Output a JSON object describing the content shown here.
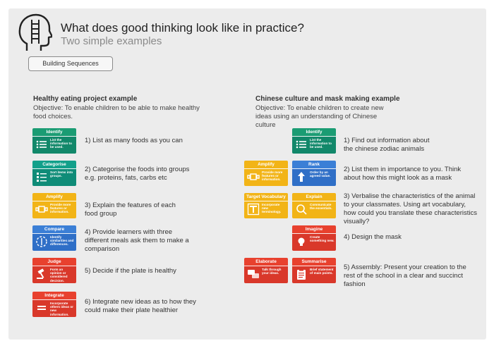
{
  "header": {
    "title": "What does good thinking look like in practice?",
    "subtitle": "Two simple examples",
    "sequence_button": "Building Sequences"
  },
  "left": {
    "title": "Healthy eating project example",
    "objective": "Objective: To enable children to be able to make healthy food choices.",
    "cards": [
      {
        "label": "Identify",
        "desc": "List the information to be used.",
        "color": "green",
        "icon": "list-icon"
      },
      {
        "label": "Categorise",
        "desc": "Sort items into groups.",
        "color": "teal",
        "icon": "sort-list-icon"
      },
      {
        "label": "Amplify",
        "desc": "Provide more features or information.",
        "color": "yellow",
        "icon": "amplify-icon"
      },
      {
        "label": "Compare",
        "desc": "Identify similarities and differences.",
        "color": "blue",
        "icon": "compare-icon"
      },
      {
        "label": "Judge",
        "desc": "Form an opinion or considered decision.",
        "color": "red",
        "icon": "gavel-icon"
      },
      {
        "label": "Integrate",
        "desc": "Incorporate others ideas or new information.",
        "color": "red",
        "icon": "integrate-icon"
      }
    ],
    "steps": [
      "1) List as many foods as you can",
      "2) Categorise the foods into groups e.g. proteins, fats, carbs etc",
      "3) Explain the features of each food group",
      "4) Provide learners with three different meals ask them to make a comparison",
      "5) Decide if the plate is healthy",
      "6) Integrate new ideas as to how they could make their plate healthier"
    ]
  },
  "right": {
    "title": "Chinese culture and mask making example",
    "objective": "Objective: To enable children to create new ideas using an understanding of Chinese culture",
    "cards": [
      {
        "label": "Identify",
        "desc": "List the information to be used.",
        "color": "green",
        "icon": "list-icon"
      },
      {
        "label": "Amplify",
        "desc": "Provide more features or information.",
        "color": "yellow",
        "icon": "amplify-icon"
      },
      {
        "label": "Rank",
        "desc": "Order by an agreed value.",
        "color": "blue",
        "icon": "rank-icon"
      },
      {
        "label": "Target Vocabulary",
        "desc": "Incorporate new terminology.",
        "color": "yellow",
        "icon": "text-icon"
      },
      {
        "label": "Explain",
        "desc": "Communicate the essentials.",
        "color": "yellow",
        "icon": "magnify-icon"
      },
      {
        "label": "Imagine",
        "desc": "Create something new.",
        "color": "red",
        "icon": "lightbulb-icon"
      },
      {
        "label": "Elaborate",
        "desc": "Talk through your ideas.",
        "color": "red",
        "icon": "speech-icon"
      },
      {
        "label": "Summarise",
        "desc": "Brief statement of main points.",
        "color": "red",
        "icon": "clipboard-icon"
      }
    ],
    "steps": [
      "1) Find out information about the chinese zodiac animals",
      "2) List them in importance to you. Think about how this might look as a mask",
      "3) Verbalise the characteristics of the animal to your classmates. Using art vocabulary, how could you translate these characteristics visually?",
      "4) Design the mask",
      "5) Assembly: Present your creation to the rest of the school in a clear and succinct fashion"
    ]
  }
}
